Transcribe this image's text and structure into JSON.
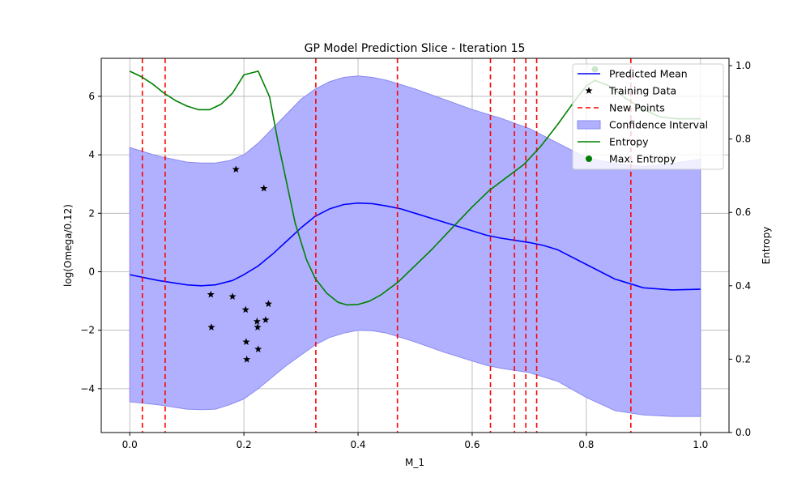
{
  "chart_data": {
    "type": "line",
    "title": "GP Model Prediction Slice - Iteration 15",
    "xlabel": "M_1",
    "ylabel": "log(Omega/0.12)",
    "y2label": "Entropy",
    "xlim": [
      -0.05,
      1.05
    ],
    "ylim": [
      -5.5,
      7.3
    ],
    "y2lim": [
      0.0,
      1.02
    ],
    "grid": true,
    "legend_position": "top-right",
    "x_ticks": [
      0.0,
      0.2,
      0.4,
      0.6,
      0.8,
      1.0
    ],
    "x_tick_labels": [
      "0.0",
      "0.2",
      "0.4",
      "0.6",
      "0.8",
      "1.0"
    ],
    "y_ticks": [
      -4,
      -2,
      0,
      2,
      4,
      6
    ],
    "y_tick_labels": [
      "−4",
      "−2",
      "0",
      "2",
      "4",
      "6"
    ],
    "y2_ticks": [
      0.0,
      0.2,
      0.4,
      0.6,
      0.8,
      1.0
    ],
    "y2_tick_labels": [
      "0.0",
      "0.2",
      "0.4",
      "0.6",
      "0.8",
      "1.0"
    ],
    "colors": {
      "mean": "#0000ff",
      "training": "#000000",
      "new_points": "#ff0000",
      "band_fill": "#b0b0ff",
      "band_edge": "#8a8af0",
      "entropy": "#008000",
      "grid": "#b0b0b0"
    },
    "legend": [
      {
        "label": "Predicted Mean",
        "marker": "line",
        "color": "#0000ff"
      },
      {
        "label": "Training Data",
        "marker": "star",
        "color": "#000000"
      },
      {
        "label": "New Points",
        "marker": "dashed",
        "color": "#ff0000"
      },
      {
        "label": "Confidence Interval",
        "marker": "patch",
        "color": "#b0b0ff"
      },
      {
        "label": "Entropy",
        "marker": "line",
        "color": "#008000"
      },
      {
        "label": "Max. Entropy",
        "marker": "dot",
        "color": "#008000"
      }
    ],
    "predicted_mean": {
      "x": [
        0.0,
        0.05,
        0.1,
        0.125,
        0.15,
        0.18,
        0.2,
        0.225,
        0.25,
        0.275,
        0.3,
        0.325,
        0.35,
        0.375,
        0.4,
        0.425,
        0.45,
        0.475,
        0.5,
        0.55,
        0.6,
        0.625,
        0.65,
        0.7,
        0.725,
        0.75,
        0.8,
        0.85,
        0.9,
        0.95,
        1.0
      ],
      "y": [
        -0.1,
        -0.3,
        -0.45,
        -0.48,
        -0.45,
        -0.3,
        -0.1,
        0.2,
        0.6,
        1.05,
        1.5,
        1.9,
        2.15,
        2.3,
        2.35,
        2.33,
        2.25,
        2.15,
        2.0,
        1.7,
        1.4,
        1.25,
        1.15,
        1.0,
        0.9,
        0.75,
        0.25,
        -0.25,
        -0.55,
        -0.62,
        -0.6
      ]
    },
    "confidence_interval": {
      "x": [
        0.0,
        0.05,
        0.1,
        0.125,
        0.15,
        0.175,
        0.2,
        0.225,
        0.25,
        0.275,
        0.3,
        0.325,
        0.35,
        0.375,
        0.4,
        0.425,
        0.45,
        0.5,
        0.55,
        0.6,
        0.625,
        0.65,
        0.7,
        0.75,
        0.8,
        0.85,
        0.9,
        0.95,
        1.0
      ],
      "upper": [
        4.25,
        3.95,
        3.75,
        3.72,
        3.72,
        3.8,
        4.0,
        4.4,
        4.9,
        5.4,
        5.9,
        6.25,
        6.5,
        6.65,
        6.7,
        6.65,
        6.55,
        6.25,
        5.9,
        5.55,
        5.4,
        5.25,
        4.9,
        4.4,
        3.9,
        3.7,
        3.6,
        3.7,
        3.85
      ],
      "lower": [
        -4.45,
        -4.55,
        -4.7,
        -4.72,
        -4.7,
        -4.55,
        -4.35,
        -4.0,
        -3.6,
        -3.2,
        -2.85,
        -2.5,
        -2.25,
        -2.1,
        -2.0,
        -2.02,
        -2.1,
        -2.4,
        -2.75,
        -3.05,
        -3.2,
        -3.3,
        -3.45,
        -3.75,
        -4.3,
        -4.75,
        -4.9,
        -4.95,
        -4.95
      ]
    },
    "training_data": {
      "x": [
        0.142,
        0.143,
        0.18,
        0.186,
        0.203,
        0.204,
        0.205,
        0.223,
        0.224,
        0.225,
        0.235,
        0.238,
        0.243
      ],
      "y": [
        -0.78,
        -1.9,
        -0.85,
        3.5,
        -1.3,
        -2.4,
        -3.0,
        -1.7,
        -1.9,
        -2.65,
        2.85,
        -1.65,
        -1.1
      ]
    },
    "new_points": [
      0.022,
      0.062,
      0.326,
      0.469,
      0.632,
      0.674,
      0.694,
      0.713,
      0.878
    ],
    "entropy": {
      "x": [
        0.0,
        0.02,
        0.04,
        0.06,
        0.08,
        0.1,
        0.12,
        0.14,
        0.16,
        0.18,
        0.2,
        0.225,
        0.245,
        0.26,
        0.275,
        0.29,
        0.31,
        0.325,
        0.345,
        0.365,
        0.38,
        0.4,
        0.42,
        0.44,
        0.47,
        0.5,
        0.53,
        0.56,
        0.6,
        0.63,
        0.66,
        0.69,
        0.72,
        0.75,
        0.78,
        0.8,
        0.815,
        0.84,
        0.87,
        0.9,
        0.93,
        0.96,
        1.0
      ],
      "y": [
        0.985,
        0.97,
        0.95,
        0.925,
        0.905,
        0.89,
        0.88,
        0.88,
        0.895,
        0.925,
        0.975,
        0.985,
        0.915,
        0.79,
        0.68,
        0.57,
        0.47,
        0.42,
        0.38,
        0.355,
        0.348,
        0.349,
        0.358,
        0.375,
        0.41,
        0.455,
        0.5,
        0.55,
        0.615,
        0.66,
        0.695,
        0.73,
        0.78,
        0.84,
        0.905,
        0.945,
        0.96,
        0.945,
        0.91,
        0.88,
        0.86,
        0.855,
        0.855
      ]
    },
    "max_entropy": {
      "x": 0.815,
      "y": 0.99
    }
  }
}
